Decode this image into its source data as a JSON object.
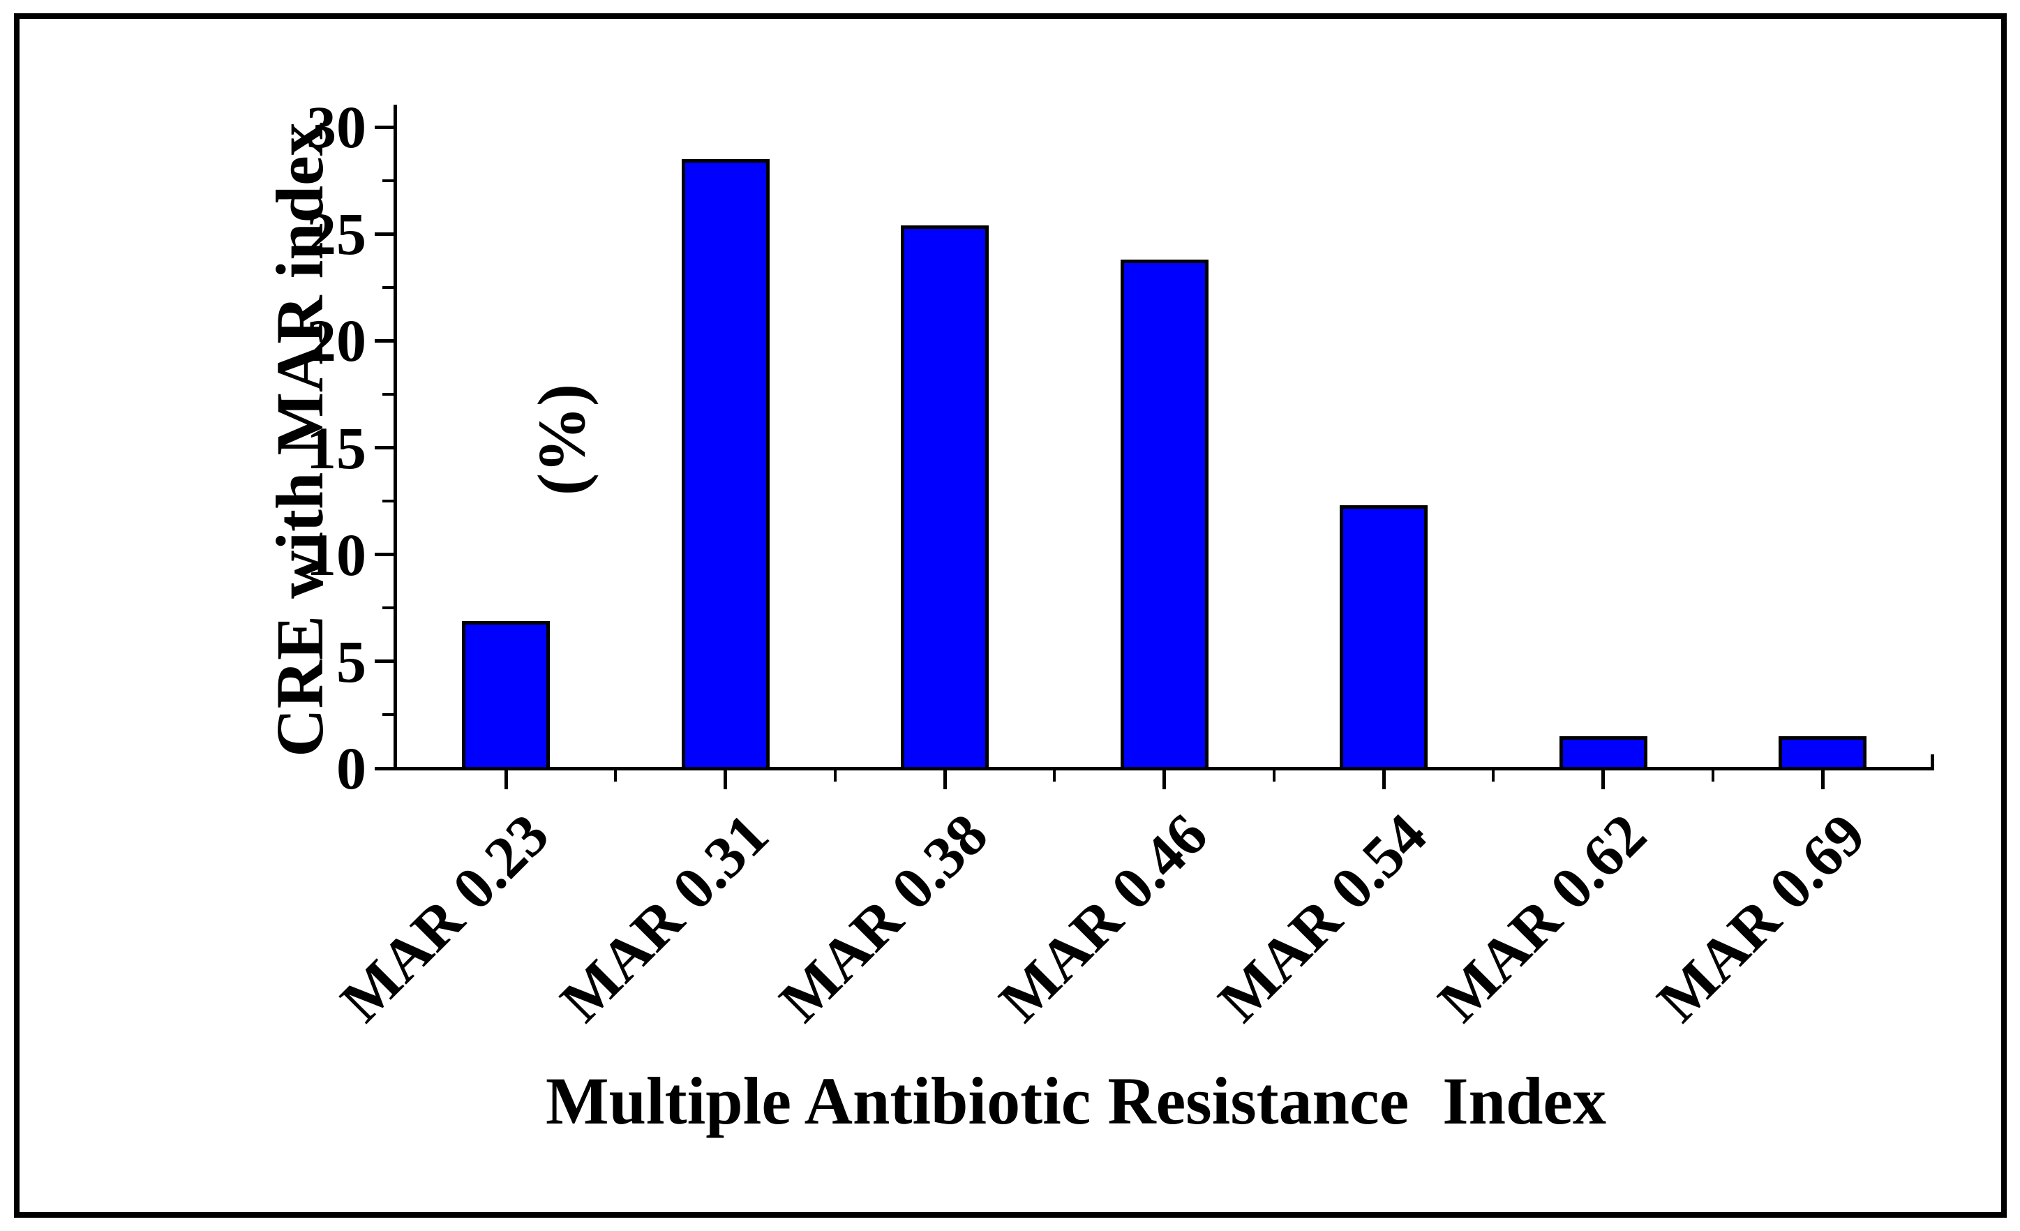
{
  "chart_data": {
    "type": "bar",
    "categories": [
      "MAR 0.23",
      "MAR 0.31",
      "MAR 0.38",
      "MAR 0.46",
      "MAR 0.54",
      "MAR 0.62",
      "MAR 0.69"
    ],
    "values": [
      6.9,
      28.5,
      25.4,
      23.8,
      12.3,
      1.5,
      1.5
    ],
    "title": "",
    "xlabel": "Multiple Antibiotic Resistance  Index",
    "ylabel_line1": "CRE with MAR index",
    "ylabel_line2": "(%)",
    "ylim": [
      0,
      30
    ],
    "ytick_labels": [
      "0",
      "5",
      "10",
      "15",
      "20",
      "25",
      "30"
    ],
    "ytick_values": [
      0,
      5,
      10,
      15,
      20,
      25,
      30
    ],
    "ytick_minor_values": [
      2.5,
      7.5,
      12.5,
      17.5,
      22.5,
      27.5
    ],
    "legend_position": "none",
    "grid": false,
    "bar_fill_color": "#0000FF",
    "bar_border_color": "#000000",
    "axis_color": "#000000",
    "background_color": "#FFFFFF"
  }
}
